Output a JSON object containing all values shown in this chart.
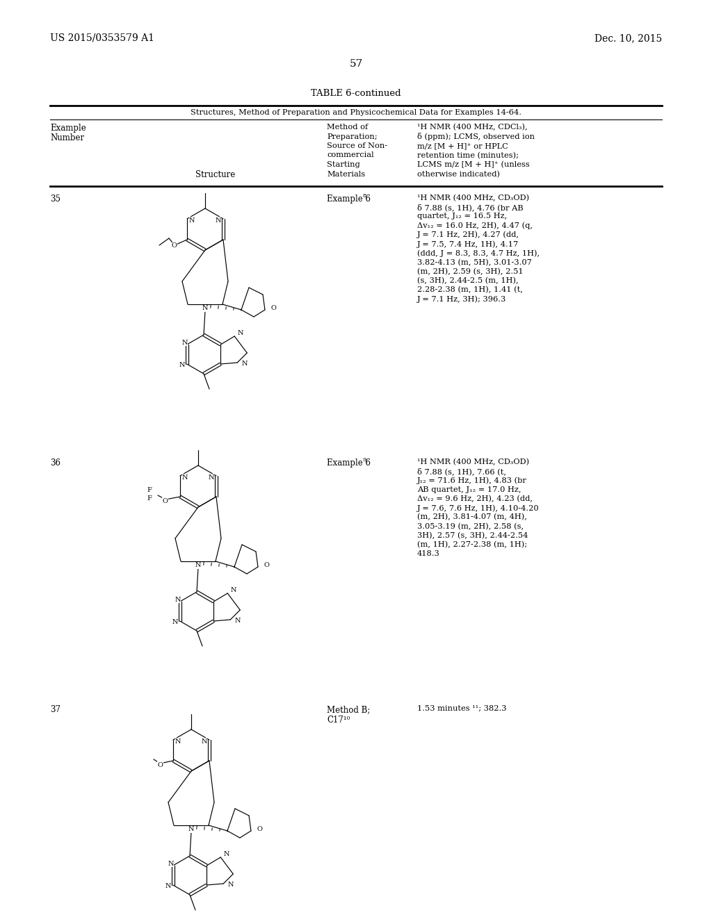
{
  "page_header_left": "US 2015/0353579 A1",
  "page_header_right": "Dec. 10, 2015",
  "page_number": "57",
  "table_title": "TABLE 6-continued",
  "table_subtitle": "Structures, Method of Preparation and Physicochemical Data for Examples 14-64.",
  "col3_header_lines": [
    "Method of",
    "Preparation;",
    "Source of Non-",
    "commercial",
    "Starting",
    "Materials"
  ],
  "col4_header_lines": [
    "¹H NMR (400 MHz, CDCl₃),",
    "δ (ppm); LCMS, observed ion",
    "m/z [M + H]⁺ or HPLC",
    "retention time (minutes);",
    "LCMS m/z [M + H]⁺ (unless",
    "otherwise indicated)"
  ],
  "row35_num": "35",
  "row35_method": "Example 6",
  "row35_method_sup": "8",
  "row35_nmr": [
    "¹H NMR (400 MHz, CD₃OD)",
    "δ 7.88 (s, 1H), 4.76 (br AB",
    "quartet, J₁₂ = 16.5 Hz,",
    "Δv₁₂ = 16.0 Hz, 2H), 4.47 (q,",
    "J = 7.1 Hz, 2H), 4.27 (dd,",
    "J = 7.5, 7.4 Hz, 1H), 4.17",
    "(ddd, J = 8.3, 8.3, 4.7 Hz, 1H),",
    "3.82-4.13 (m, 5H), 3.01-3.07",
    "(m, 2H), 2.59 (s, 3H), 2.51",
    "(s, 3H), 2.44-2.5 (m, 1H),",
    "2.28-2.38 (m, 1H), 1.41 (t,",
    "J = 7.1 Hz, 3H); 396.3"
  ],
  "row36_num": "36",
  "row36_method": "Example 6",
  "row36_method_sup": "9",
  "row36_nmr": [
    "¹H NMR (400 MHz, CD₃OD)",
    "δ 7.88 (s, 1H), 7.66 (t,",
    "J₁₂ = 71.6 Hz, 1H), 4.83 (br",
    "AB quartet, J₁₂ = 17.0 Hz,",
    "Δv₁₂ = 9.6 Hz, 2H), 4.23 (dd,",
    "J = 7.6, 7.6 Hz, 1H), 4.10-4.20",
    "(m, 2H), 3.81-4.07 (m, 4H),",
    "3.05-3.19 (m, 2H), 2.58 (s,",
    "3H), 2.57 (s, 3H), 2.44-2.54",
    "(m, 1H), 2.27-2.38 (m, 1H);",
    "418.3"
  ],
  "row37_num": "37",
  "row37_method": "Method B;",
  "row37_method2": "C17¹⁰",
  "row37_nmr": [
    "1.53 minutes ¹¹; 382.3"
  ],
  "bg": "#ffffff",
  "black": "#000000"
}
